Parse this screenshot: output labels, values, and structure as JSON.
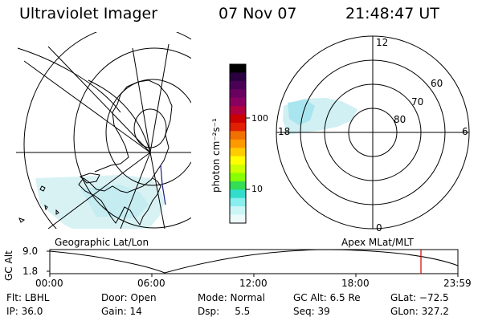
{
  "header": {
    "title": "Ultraviolet Imager",
    "date": "07 Nov 07",
    "time": "21:48:47 UT"
  },
  "left_panel": {
    "caption": "Geographic Lat/Lon"
  },
  "right_panel": {
    "caption": "Apex MLat/MLT",
    "mlt_labels": [
      "12",
      "6",
      "0",
      "18"
    ],
    "lat_labels": [
      "60",
      "70",
      "80"
    ]
  },
  "colorbar": {
    "unit_label": "photon cm⁻²s⁻¹",
    "ticks": [
      "100",
      "10"
    ],
    "colors": [
      "#000000",
      "#2b0040",
      "#4a0057",
      "#6a0060",
      "#8a0060",
      "#b00040",
      "#cc0000",
      "#e02000",
      "#f07000",
      "#ff9900",
      "#ffcc00",
      "#ffff00",
      "#ccff00",
      "#88ff00",
      "#33dd55",
      "#33ddcc",
      "#88eeee",
      "#ccf6f6",
      "#eefafa"
    ]
  },
  "timeline": {
    "y_axis_label": "GC Alt",
    "y_ticks": [
      "9.0",
      "1.8"
    ],
    "x_ticks": [
      "00:00",
      "06:00",
      "12:00",
      "18:00",
      "23:59"
    ]
  },
  "status": {
    "row1": [
      {
        "key": "flt",
        "text": "Flt: LBHL"
      },
      {
        "key": "door",
        "text": "Door: Open"
      },
      {
        "key": "mode",
        "text": "Mode: Normal"
      },
      {
        "key": "gcalt",
        "text": "GC Alt: 6.5 Re"
      },
      {
        "key": "glat",
        "text": "GLat: −72.5"
      }
    ],
    "row2": [
      {
        "key": "ip",
        "text": "IP: 36.0"
      },
      {
        "key": "gain",
        "text": "Gain: 14"
      },
      {
        "key": "dsp",
        "text": "Dsp:     5.5"
      },
      {
        "key": "seq",
        "text": "Seq: 39"
      },
      {
        "key": "glon",
        "text": "GLon: 327.2"
      }
    ]
  }
}
